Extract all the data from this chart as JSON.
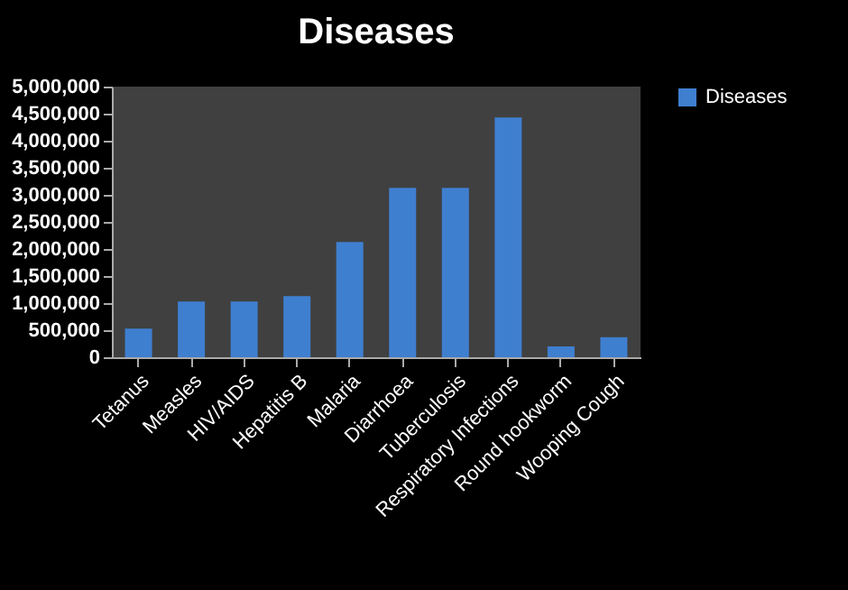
{
  "chart_data": {
    "type": "bar",
    "title": "Diseases",
    "categories": [
      "Tetanus",
      "Measles",
      "HIV/AIDS",
      "Hepatitis B",
      "Malaria",
      "Diarrhoea",
      "Tuberculosis",
      "Respiratory Infections",
      "Round hookworm",
      "Wooping Cough"
    ],
    "series": [
      {
        "name": "Diseases",
        "color": "#3f7fd0",
        "values": [
          530000,
          1030000,
          1030000,
          1130000,
          2130000,
          3130000,
          3130000,
          4430000,
          200000,
          370000
        ]
      }
    ],
    "ylim": [
      0,
      5000000
    ],
    "yticks": [
      0,
      {
        "value": 500000,
        "label": "500,000"
      },
      {
        "value": 1000000,
        "label": "1,000,000"
      },
      {
        "value": 1500000,
        "label": "1,500,000"
      },
      {
        "value": 2000000,
        "label": "2,000,000"
      },
      {
        "value": 2500000,
        "label": "2,500,000"
      },
      {
        "value": 3000000,
        "label": "3,000,000"
      },
      {
        "value": 3500000,
        "label": "3,500,000"
      },
      {
        "value": 4000000,
        "label": "4,000,000"
      },
      {
        "value": 4500000,
        "label": "4,500,000"
      },
      {
        "value": 5000000,
        "label": "5,000,000"
      }
    ],
    "grid": false,
    "legend": "right"
  }
}
